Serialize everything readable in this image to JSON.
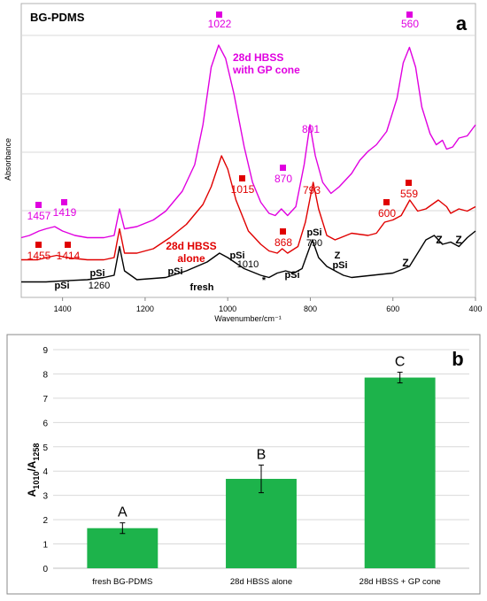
{
  "chart_data": [
    {
      "type": "line",
      "panel_label": "a",
      "title": "BG-PDMS",
      "xlabel": "Wavenumber/cm⁻¹",
      "ylabel": "Absorbance",
      "xlim": [
        1500,
        400
      ],
      "x_reversed": true,
      "x_ticks": [
        "1400",
        "1200",
        "1000",
        "800",
        "600",
        "400"
      ],
      "grid": true,
      "series": [
        {
          "label": "fresh",
          "color": "#000000",
          "points": [
            [
              1500,
              0.03
            ],
            [
              1440,
              0.03
            ],
            [
              1400,
              0.035
            ],
            [
              1340,
              0.04
            ],
            [
              1300,
              0.05
            ],
            [
              1275,
              0.06
            ],
            [
              1262,
              0.19
            ],
            [
              1250,
              0.08
            ],
            [
              1220,
              0.04
            ],
            [
              1150,
              0.05
            ],
            [
              1100,
              0.08
            ],
            [
              1050,
              0.12
            ],
            [
              1020,
              0.16
            ],
            [
              1000,
              0.14
            ],
            [
              960,
              0.09
            ],
            [
              920,
              0.06
            ],
            [
              900,
              0.05
            ],
            [
              880,
              0.07
            ],
            [
              860,
              0.08
            ],
            [
              840,
              0.07
            ],
            [
              820,
              0.09
            ],
            [
              795,
              0.22
            ],
            [
              780,
              0.14
            ],
            [
              760,
              0.1
            ],
            [
              740,
              0.08
            ],
            [
              720,
              0.06
            ],
            [
              700,
              0.05
            ],
            [
              650,
              0.06
            ],
            [
              600,
              0.07
            ],
            [
              560,
              0.1
            ],
            [
              520,
              0.22
            ],
            [
              500,
              0.24
            ],
            [
              480,
              0.2
            ],
            [
              460,
              0.21
            ],
            [
              440,
              0.19
            ],
            [
              420,
              0.23
            ],
            [
              400,
              0.26
            ]
          ],
          "annotations": [
            {
              "text": "pSi",
              "x": 1420
            },
            {
              "text": "pSi",
              "x": 1270
            },
            {
              "text": "1260",
              "x": 1270
            },
            {
              "text": "pSi",
              "x": 1070
            },
            {
              "text": "fresh",
              "x": 1050
            },
            {
              "text": "pSi",
              "x": 1010
            },
            {
              "text": "1010",
              "x": 1005
            },
            {
              "text": "*",
              "x": 905
            },
            {
              "text": "pSi",
              "x": 870
            },
            {
              "text": "pSi",
              "x": 795
            },
            {
              "text": "790",
              "x": 790
            },
            {
              "text": "Z",
              "x": 740
            },
            {
              "text": "pSi",
              "x": 740
            },
            {
              "text": "Z",
              "x": 615
            },
            {
              "text": "Z",
              "x": 495
            },
            {
              "text": "Z",
              "x": 455
            }
          ]
        },
        {
          "label": "28d HBSS alone",
          "color": "#e00000",
          "points": [
            [
              1500,
              0.13
            ],
            [
              1460,
              0.13
            ],
            [
              1440,
              0.14
            ],
            [
              1414,
              0.15
            ],
            [
              1390,
              0.14
            ],
            [
              1340,
              0.13
            ],
            [
              1300,
              0.13
            ],
            [
              1275,
              0.14
            ],
            [
              1262,
              0.27
            ],
            [
              1250,
              0.16
            ],
            [
              1220,
              0.16
            ],
            [
              1180,
              0.18
            ],
            [
              1140,
              0.23
            ],
            [
              1100,
              0.29
            ],
            [
              1060,
              0.38
            ],
            [
              1040,
              0.46
            ],
            [
              1015,
              0.6
            ],
            [
              1000,
              0.54
            ],
            [
              980,
              0.4
            ],
            [
              950,
              0.26
            ],
            [
              920,
              0.2
            ],
            [
              900,
              0.17
            ],
            [
              880,
              0.16
            ],
            [
              868,
              0.18
            ],
            [
              855,
              0.16
            ],
            [
              830,
              0.19
            ],
            [
              812,
              0.3
            ],
            [
              793,
              0.48
            ],
            [
              780,
              0.36
            ],
            [
              760,
              0.24
            ],
            [
              740,
              0.22
            ],
            [
              700,
              0.25
            ],
            [
              660,
              0.24
            ],
            [
              640,
              0.25
            ],
            [
              620,
              0.3
            ],
            [
              600,
              0.31
            ],
            [
              580,
              0.33
            ],
            [
              559,
              0.4
            ],
            [
              540,
              0.35
            ],
            [
              520,
              0.36
            ],
            [
              490,
              0.4
            ],
            [
              470,
              0.37
            ],
            [
              460,
              0.34
            ],
            [
              440,
              0.36
            ],
            [
              420,
              0.35
            ],
            [
              400,
              0.37
            ]
          ],
          "annotations": [
            {
              "text": "1455",
              "x": 1455
            },
            {
              "text": "1414",
              "x": 1414
            },
            {
              "text": "1015",
              "x": 1015
            },
            {
              "text": "28d HBSS",
              "x": 1100
            },
            {
              "text": "alone",
              "x": 1100
            },
            {
              "text": "868",
              "x": 868
            },
            {
              "text": "793",
              "x": 793
            },
            {
              "text": "600",
              "x": 600
            },
            {
              "text": "559",
              "x": 559
            }
          ]
        },
        {
          "label": "28d HBSS with GP cone",
          "color": "#e000e0",
          "points": [
            [
              1500,
              0.23
            ],
            [
              1480,
              0.24
            ],
            [
              1457,
              0.26
            ],
            [
              1440,
              0.27
            ],
            [
              1419,
              0.28
            ],
            [
              1400,
              0.26
            ],
            [
              1370,
              0.24
            ],
            [
              1340,
              0.23
            ],
            [
              1300,
              0.23
            ],
            [
              1275,
              0.24
            ],
            [
              1262,
              0.36
            ],
            [
              1250,
              0.27
            ],
            [
              1220,
              0.28
            ],
            [
              1180,
              0.31
            ],
            [
              1150,
              0.35
            ],
            [
              1110,
              0.44
            ],
            [
              1080,
              0.56
            ],
            [
              1060,
              0.74
            ],
            [
              1040,
              1.0
            ],
            [
              1022,
              1.1
            ],
            [
              1005,
              1.04
            ],
            [
              985,
              0.88
            ],
            [
              960,
              0.64
            ],
            [
              940,
              0.48
            ],
            [
              920,
              0.39
            ],
            [
              900,
              0.34
            ],
            [
              885,
              0.33
            ],
            [
              870,
              0.36
            ],
            [
              855,
              0.33
            ],
            [
              835,
              0.37
            ],
            [
              815,
              0.56
            ],
            [
              801,
              0.74
            ],
            [
              788,
              0.6
            ],
            [
              770,
              0.48
            ],
            [
              750,
              0.43
            ],
            [
              730,
              0.46
            ],
            [
              700,
              0.52
            ],
            [
              680,
              0.58
            ],
            [
              660,
              0.62
            ],
            [
              640,
              0.65
            ],
            [
              615,
              0.71
            ],
            [
              590,
              0.86
            ],
            [
              575,
              1.02
            ],
            [
              560,
              1.09
            ],
            [
              545,
              1.0
            ],
            [
              530,
              0.82
            ],
            [
              510,
              0.7
            ],
            [
              495,
              0.65
            ],
            [
              480,
              0.67
            ],
            [
              470,
              0.63
            ],
            [
              455,
              0.64
            ],
            [
              440,
              0.68
            ],
            [
              420,
              0.69
            ],
            [
              400,
              0.74
            ]
          ],
          "annotations": [
            {
              "text": "1457",
              "x": 1457
            },
            {
              "text": "1419",
              "x": 1419
            },
            {
              "text": "1022",
              "x": 1022
            },
            {
              "text": "28d HBSS",
              "x": 930
            },
            {
              "text": "with GP cone",
              "x": 930
            },
            {
              "text": "870",
              "x": 870
            },
            {
              "text": "801",
              "x": 801
            },
            {
              "text": "560",
              "x": 560
            }
          ]
        }
      ]
    },
    {
      "type": "bar",
      "panel_label": "b",
      "ylabel": "A1010/A1258",
      "ylabel_main": "A",
      "ylabel_sub1": "1010",
      "ylabel_mid": "/A",
      "ylabel_sub2": "1258",
      "ylim": [
        0,
        9
      ],
      "y_ticks": [
        "0",
        "1",
        "2",
        "3",
        "4",
        "5",
        "6",
        "7",
        "8",
        "9"
      ],
      "grid": true,
      "bar_color": "#1db34b",
      "categories": [
        "fresh BG-PDMS",
        "28d HBSS alone",
        "28d HBSS + GP cone"
      ],
      "values": [
        1.65,
        3.68,
        7.85
      ],
      "errors": [
        0.22,
        0.57,
        0.22
      ],
      "letters": [
        "A",
        "B",
        "C"
      ]
    }
  ]
}
